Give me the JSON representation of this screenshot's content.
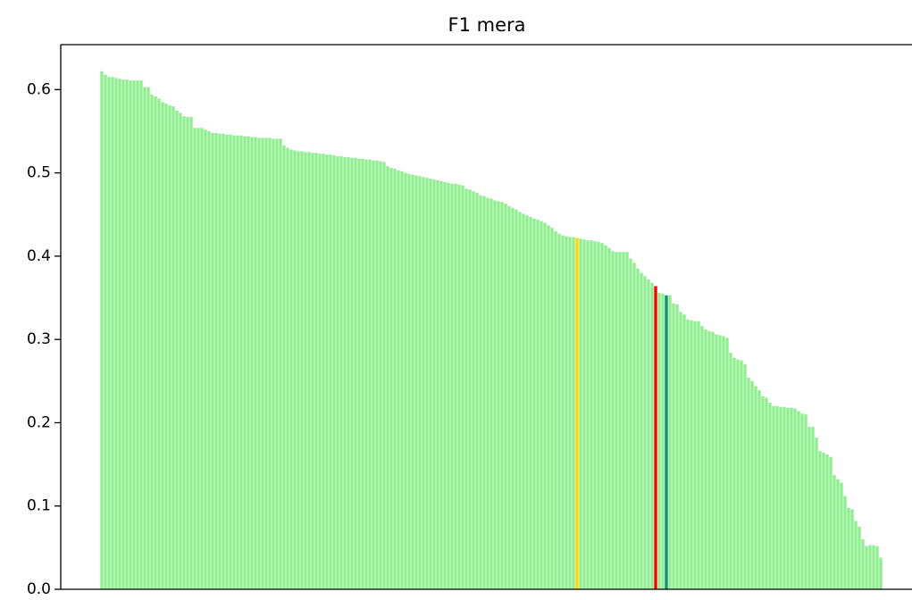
{
  "chart_data": {
    "type": "bar",
    "title": "F1 mera",
    "color": "#90ee90",
    "highlights": [
      {
        "index": 133,
        "color": "#ffd700"
      },
      {
        "index": 155,
        "color": "#ff0000"
      },
      {
        "index": 158,
        "color": "#138d75"
      }
    ],
    "xlim": [
      -11.5,
      226.75
    ],
    "ylim": [
      0,
      0.654
    ],
    "yticks": [
      {
        "value": 0,
        "label": "0.0"
      },
      0.1,
      0.2,
      0.3,
      0.4,
      0.5,
      0.6
    ],
    "values": [
      0.622,
      0.618,
      0.615,
      0.615,
      0.614,
      0.613,
      0.612,
      0.612,
      0.611,
      0.611,
      0.611,
      0.611,
      0.603,
      0.603,
      0.594,
      0.592,
      0.589,
      0.585,
      0.583,
      0.581,
      0.58,
      0.575,
      0.572,
      0.568,
      0.567,
      0.567,
      0.554,
      0.554,
      0.554,
      0.552,
      0.55,
      0.548,
      0.548,
      0.547,
      0.547,
      0.546,
      0.546,
      0.545,
      0.545,
      0.545,
      0.544,
      0.544,
      0.543,
      0.543,
      0.542,
      0.542,
      0.542,
      0.542,
      0.541,
      0.541,
      0.541,
      0.533,
      0.53,
      0.528,
      0.527,
      0.526,
      0.526,
      0.525,
      0.525,
      0.524,
      0.524,
      0.523,
      0.523,
      0.522,
      0.522,
      0.521,
      0.52,
      0.52,
      0.519,
      0.519,
      0.518,
      0.518,
      0.517,
      0.517,
      0.516,
      0.516,
      0.515,
      0.515,
      0.514,
      0.513,
      0.508,
      0.506,
      0.505,
      0.503,
      0.502,
      0.5,
      0.499,
      0.498,
      0.497,
      0.496,
      0.495,
      0.494,
      0.493,
      0.492,
      0.491,
      0.49,
      0.489,
      0.488,
      0.487,
      0.487,
      0.486,
      0.485,
      0.481,
      0.48,
      0.478,
      0.476,
      0.473,
      0.472,
      0.47,
      0.469,
      0.467,
      0.466,
      0.465,
      0.463,
      0.46,
      0.458,
      0.456,
      0.453,
      0.451,
      0.449,
      0.447,
      0.445,
      0.444,
      0.442,
      0.44,
      0.437,
      0.434,
      0.43,
      0.427,
      0.425,
      0.424,
      0.423,
      0.423,
      0.422,
      0.421,
      0.42,
      0.419,
      0.419,
      0.418,
      0.417,
      0.416,
      0.413,
      0.41,
      0.406,
      0.405,
      0.405,
      0.405,
      0.405,
      0.397,
      0.392,
      0.385,
      0.38,
      0.376,
      0.372,
      0.368,
      0.364,
      0.356,
      0.355,
      0.353,
      0.353,
      0.343,
      0.342,
      0.333,
      0.33,
      0.324,
      0.323,
      0.322,
      0.322,
      0.316,
      0.312,
      0.31,
      0.309,
      0.306,
      0.305,
      0.304,
      0.302,
      0.284,
      0.278,
      0.276,
      0.275,
      0.27,
      0.254,
      0.25,
      0.244,
      0.239,
      0.232,
      0.23,
      0.224,
      0.22,
      0.22,
      0.219,
      0.219,
      0.218,
      0.218,
      0.217,
      0.214,
      0.211,
      0.21,
      0.195,
      0.195,
      0.182,
      0.166,
      0.164,
      0.162,
      0.159,
      0.137,
      0.132,
      0.128,
      0.112,
      0.098,
      0.096,
      0.082,
      0.075,
      0.06,
      0.052,
      0.053,
      0.053,
      0.052,
      0.038
    ]
  }
}
